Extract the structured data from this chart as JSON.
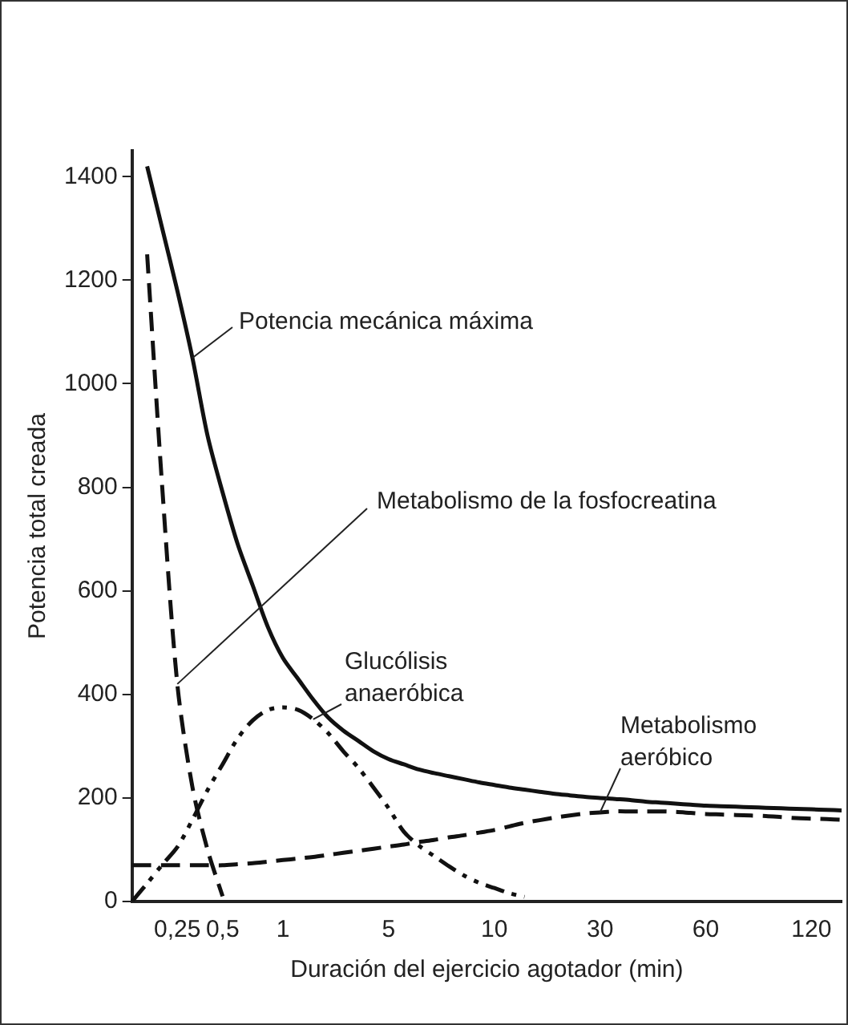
{
  "chart_data": {
    "type": "line",
    "xlabel": "Duración del ejercicio agotador (min)",
    "ylabel": "Potencia total creada",
    "categories": [
      null,
      null,
      null,
      "0,25",
      null,
      null,
      "0,5",
      null,
      null,
      null,
      "1",
      null,
      null,
      null,
      null,
      null,
      null,
      "5",
      null,
      null,
      null,
      null,
      null,
      null,
      "10",
      null,
      null,
      null,
      null,
      null,
      null,
      "30",
      null,
      null,
      null,
      null,
      null,
      null,
      "60",
      null,
      null,
      null,
      null,
      null,
      null,
      "120",
      null,
      null
    ],
    "series": [
      {
        "name": "Potencia mecánica máxima",
        "color": "#111111",
        "line_style": "solid",
        "values": [
          null,
          1420,
          1300,
          1180,
          1050,
          900,
          790,
          690,
          610,
          530,
          470,
          430,
          390,
          355,
          330,
          310,
          290,
          275,
          265,
          255,
          248,
          242,
          236,
          230,
          225,
          220,
          216,
          212,
          208,
          205,
          202,
          200,
          198,
          196,
          193,
          191,
          189,
          187,
          185,
          184,
          183,
          182,
          181,
          180,
          179,
          178,
          177,
          176
        ]
      },
      {
        "name": "Metabolismo de la fosfocreatina",
        "color": "#111111",
        "line_style": "dashed",
        "values": [
          null,
          1250,
          800,
          420,
          221,
          100,
          10,
          null,
          null,
          null,
          null,
          null,
          null,
          null,
          null,
          null,
          null,
          null,
          null,
          null,
          null,
          null,
          null,
          null,
          null,
          null,
          null,
          null,
          null,
          null,
          null,
          null,
          null,
          null,
          null,
          null,
          null,
          null,
          null,
          null,
          null,
          null,
          null,
          null,
          null,
          null,
          null,
          null
        ]
      },
      {
        "name": "Glucólisis anaeróbica",
        "color": "#111111",
        "line_style": "dotted",
        "values": [
          0,
          35,
          71,
          105,
          158,
          215,
          265,
          315,
          350,
          370,
          375,
          370,
          352,
          325,
          290,
          258,
          220,
          180,
          135,
          108,
          88,
          68,
          50,
          36,
          26,
          16,
          9,
          null,
          null,
          null,
          null,
          null,
          null,
          null,
          null,
          null,
          null,
          null,
          null,
          null,
          null,
          null,
          null,
          null,
          null,
          null,
          null,
          null
        ]
      },
      {
        "name": "Metabolismo aeróbico",
        "color": "#111111",
        "line_style": "dashed",
        "values": [
          70,
          70,
          70,
          70,
          70,
          70,
          70,
          72,
          74,
          77,
          80,
          83,
          86,
          90,
          94,
          98,
          102,
          106,
          110,
          115,
          119,
          124,
          128,
          133,
          138,
          145,
          152,
          157,
          162,
          166,
          170,
          172,
          174,
          174,
          174,
          174,
          173,
          171,
          169,
          168,
          167,
          166,
          165,
          163,
          161,
          160,
          159,
          158
        ]
      }
    ],
    "ylim": [
      0,
      1450
    ],
    "yticks": [
      0,
      200,
      400,
      600,
      800,
      1000,
      1200,
      1400
    ],
    "grid": false,
    "marker": "none"
  }
}
